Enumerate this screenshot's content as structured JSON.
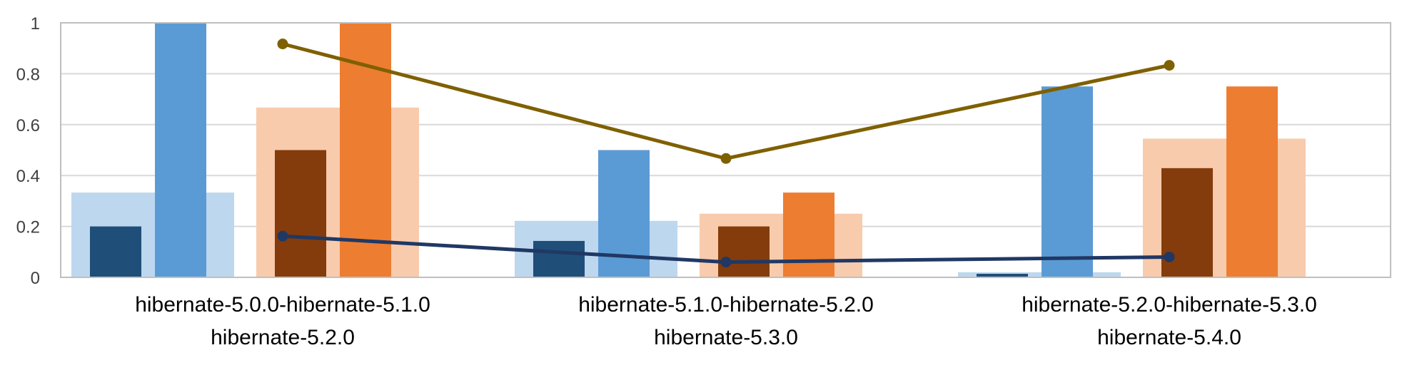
{
  "chart_data": {
    "type": "bar",
    "title": "",
    "xlabel": "",
    "ylabel": "",
    "ylim": [
      0,
      1
    ],
    "yticks": [
      0,
      0.2,
      0.4,
      0.6,
      0.8,
      1
    ],
    "ytick_labels": [
      "0",
      "0.2",
      "0.4",
      "0.6",
      "0.8",
      "1"
    ],
    "grid": true,
    "legend": "none",
    "categories": [
      [
        "hibernate-5.0.0-hibernate-5.1.0",
        "hibernate-5.2.0"
      ],
      [
        "hibernate-5.1.0-hibernate-5.2.0",
        "hibernate-5.3.0"
      ],
      [
        "hibernate-5.2.0-hibernate-5.3.0",
        "hibernate-5.4.0"
      ]
    ],
    "bar_series": [
      {
        "color": "#BDD7EE",
        "group": "blue",
        "kind": "wide",
        "values": [
          0.333,
          0.222,
          0.02
        ]
      },
      {
        "color": "#1F4E79",
        "group": "blue",
        "kind": "narrow-left",
        "values": [
          0.2,
          0.143,
          0.014
        ]
      },
      {
        "color": "#5B9BD5",
        "group": "blue",
        "kind": "narrow-right",
        "values": [
          1.0,
          0.5,
          0.75
        ]
      },
      {
        "color": "#F8CBAD",
        "group": "orange",
        "kind": "wide",
        "values": [
          0.667,
          0.25,
          0.545
        ]
      },
      {
        "color": "#843C0C",
        "group": "orange",
        "kind": "narrow-left",
        "values": [
          0.5,
          0.2,
          0.429
        ]
      },
      {
        "color": "#ED7D31",
        "group": "orange",
        "kind": "narrow-right",
        "values": [
          1.0,
          0.333,
          0.75
        ]
      }
    ],
    "line_series": [
      {
        "color": "#7F6000",
        "values": [
          0.917,
          0.467,
          0.833
        ]
      },
      {
        "color": "#203864",
        "values": [
          0.162,
          0.06,
          0.08
        ]
      }
    ],
    "colors": {
      "axis": "#BFBFBF",
      "grid": "#D9D9D9"
    }
  }
}
